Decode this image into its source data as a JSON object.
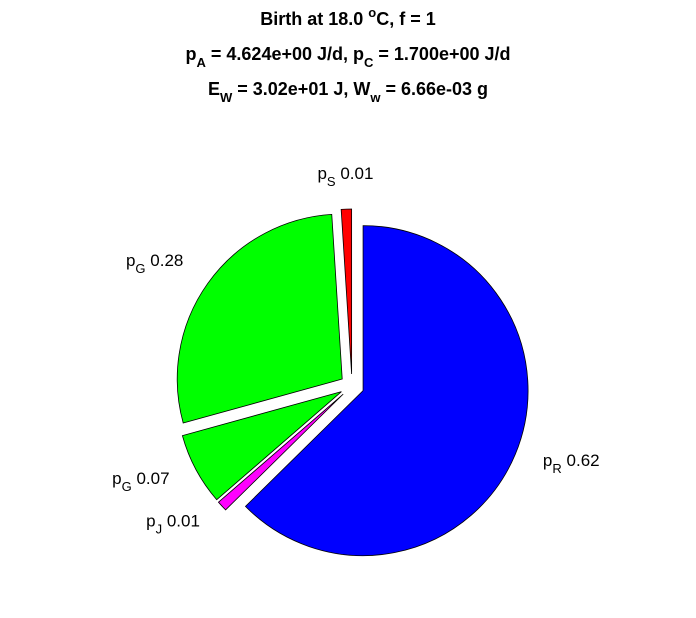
{
  "chart_data": {
    "type": "pie",
    "title": [
      [
        {
          "text": "Birth at 18.0 "
        },
        {
          "sup": "o"
        },
        {
          "text": "C, f = 1"
        }
      ],
      [
        {
          "text": "p"
        },
        {
          "sub": "A"
        },
        {
          "text": " = 4.624e+00 J/d, p"
        },
        {
          "sub": "C"
        },
        {
          "text": " = 1.700e+00 J/d"
        }
      ],
      [
        {
          "text": "E"
        },
        {
          "sub": "W"
        },
        {
          "text": " = 3.02e+01 J, W"
        },
        {
          "sub": "w"
        },
        {
          "text": " = 6.66e-03 g"
        }
      ]
    ],
    "categories": [
      {
        "text": "p",
        "sub": "R"
      },
      {
        "text": "p",
        "sub": "J"
      },
      {
        "text": "p",
        "sub": "G"
      },
      {
        "text": "p",
        "sub": "G"
      },
      {
        "text": "p",
        "sub": "S"
      }
    ],
    "values": [
      0.62,
      0.01,
      0.07,
      0.28,
      0.01
    ],
    "colors": [
      "#0000ff",
      "#ff00ff",
      "#00ff00",
      "#00ff00",
      "#ff0000"
    ]
  }
}
